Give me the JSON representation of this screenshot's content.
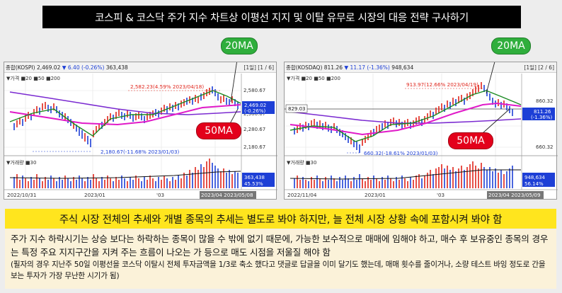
{
  "title": "코스피 & 코스닥 주가 지수 차트상 이평선 지지 및 이탈 유무로 시장의 대응 전략 구사하기",
  "left_chart": {
    "header": {
      "name": "종합(KOSPI)",
      "price": "2,469.02",
      "change": "▼ 6.40 (-0.26%)",
      "volume": "363,438",
      "tabs": "[1일] [1 / 6]"
    },
    "legend": "▼가격 ■20 ■50 ■200",
    "vol_legend": "▼거래량 ■30",
    "high_label": "2,582.23(4.59% 2023/04/18)",
    "low_label": "2,180.67(-11.68% 2023/01/03)",
    "price_ticks": [
      "2,580.67",
      "2,380.67",
      "2,280.67",
      "2,180.67"
    ],
    "price_tag": "2,469.02",
    "change_tag": "(-0.26%)",
    "vol_tags": [
      "363,438",
      "45.53%"
    ],
    "dates": [
      "2022/10/31",
      "2023/01",
      "'03"
    ],
    "date_range": "2023/04 2023/05/08",
    "ma20_label": "20MA",
    "ma50_label": "50MA"
  },
  "right_chart": {
    "header": {
      "name": "종합(KOSDAQ)",
      "price": "811.26",
      "change": "▼ 11.17 (-1.36%)",
      "volume": "948,634",
      "tabs": "[1일] [2 / 6]"
    },
    "legend": "▼가격 ■20 ■50 ■200",
    "vol_legend": "▼거래량 ■30",
    "high_label": "913.97(12.66% 2023/04/19)",
    "low_label": "660.32(-18.61% 2023/01/03)",
    "price_ticks": [
      "860.32",
      "660.32"
    ],
    "level_tag": "829.03",
    "price_tag": "811.26",
    "change_tag": "(-1.36%)",
    "vol_tags": [
      "948,634",
      "56.14%"
    ],
    "dates": [
      "2022/11/04",
      "2023/01",
      "'03"
    ],
    "date_range": "2023/04 2023/05/09",
    "ma20_label": "20MA",
    "ma50_label": "50MA"
  },
  "colors": {
    "ma20": "#1a8a22",
    "ma50": "#e01ac8",
    "ma200": "#7b2bd1",
    "up": "#e0251b",
    "down": "#1d3fd6",
    "badge_green": "#2fae3c",
    "badge_red": "#e3001b",
    "caption_bg": "#ffe51e"
  },
  "caption": "주식 시장 전체의 추세와 개별 종목의 추세는 별도로 봐야 하지만, 늘 전체 시장 상황 속에 포함시켜 봐야 함",
  "body_main": "주가 지수 하락시기는 상승 보다는 하락하는 종목이 많을 수 밖에 없기 때문에, 가능한 보수적으로 매매에 임해야 하고, 매수 후 보유중인 종목의 경우는 특정 주요 지지구간을 지켜 주는 흐름이 나오는 가 등으로 매도 시점을 저울질 해야 함",
  "body_note": "(필자의 경우 지난주 50일 이평선을 코스닥 이탈시 전체 투자금액을 1/3로 축소 했다고 댓글로 답글을 이미 달기도 했는데, 매매 횟수를 줄이거나, 소량 테스트 바잉 정도로 간을 보는 투자가 가장 무난한 시기가 됨)"
}
